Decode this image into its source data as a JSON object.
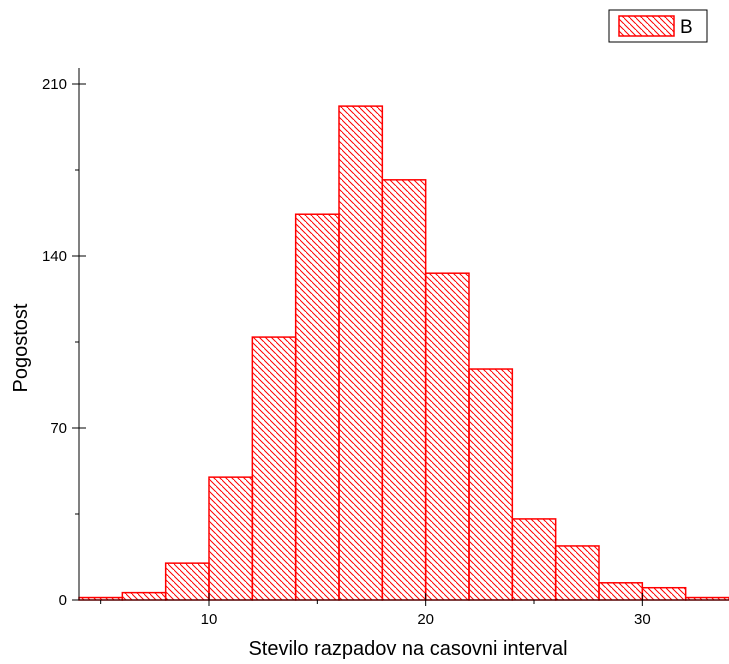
{
  "chart_data": {
    "type": "bar",
    "bin_centers": [
      5,
      7,
      9,
      11,
      13,
      15,
      17,
      19,
      21,
      23,
      25,
      27,
      29,
      31,
      33
    ],
    "values": [
      1,
      3,
      15,
      50,
      107,
      157,
      201,
      171,
      133,
      94,
      33,
      22,
      7,
      5,
      1
    ],
    "bin_width": 2,
    "xlabel": "Stevilo razpadov na casovni interval",
    "ylabel": "Pogostost",
    "xlim": [
      4,
      34
    ],
    "ylim": [
      0,
      210
    ],
    "x_ticks": [
      10,
      20,
      30
    ],
    "y_ticks": [
      0,
      70,
      140,
      210
    ],
    "legend": {
      "label": "B",
      "position": "top-right"
    },
    "colors": {
      "bar": "#ff0000"
    }
  }
}
